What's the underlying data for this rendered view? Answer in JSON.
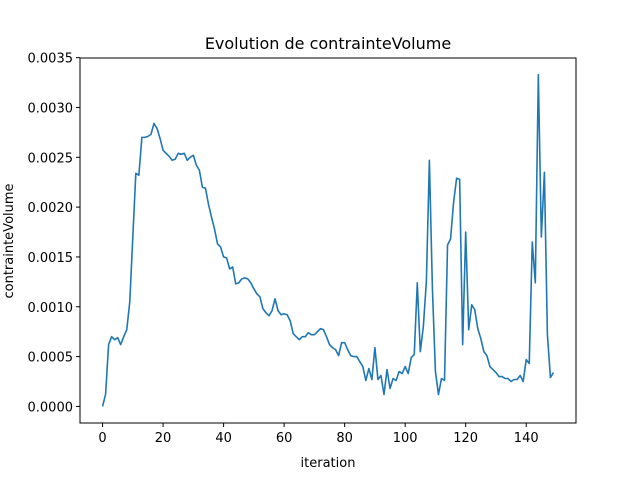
{
  "chart_data": {
    "type": "line",
    "title": "Evolution de contrainteVolume",
    "x_label": "iteration",
    "y_label": "contrainteVolume",
    "x": [
      0,
      1,
      2,
      3,
      4,
      5,
      6,
      7,
      8,
      9,
      10,
      11,
      12,
      13,
      14,
      15,
      16,
      17,
      18,
      19,
      20,
      21,
      22,
      23,
      24,
      25,
      26,
      27,
      28,
      29,
      30,
      31,
      32,
      33,
      34,
      35,
      36,
      37,
      38,
      39,
      40,
      41,
      42,
      43,
      44,
      45,
      46,
      47,
      48,
      49,
      50,
      51,
      52,
      53,
      54,
      55,
      56,
      57,
      58,
      59,
      60,
      61,
      62,
      63,
      64,
      65,
      66,
      67,
      68,
      69,
      70,
      71,
      72,
      73,
      74,
      75,
      76,
      77,
      78,
      79,
      80,
      81,
      82,
      83,
      84,
      85,
      86,
      87,
      88,
      89,
      90,
      91,
      92,
      93,
      94,
      95,
      96,
      97,
      98,
      99,
      100,
      101,
      102,
      103,
      104,
      105,
      106,
      107,
      108,
      109,
      110,
      111,
      112,
      113,
      114,
      115,
      116,
      117,
      118,
      119,
      120,
      121,
      122,
      123,
      124,
      125,
      126,
      127,
      128,
      129,
      130,
      131,
      132,
      133,
      134,
      135,
      136,
      137,
      138,
      139,
      140,
      141,
      142,
      143,
      144,
      145,
      146,
      147,
      148,
      149
    ],
    "series": [
      {
        "color": "#1f77b4",
        "values": [
          0.0,
          0.00012,
          0.00062,
          0.0007,
          0.00067,
          0.00069,
          0.00062,
          0.0007,
          0.00077,
          0.00105,
          0.0017,
          0.00234,
          0.00232,
          0.0027,
          0.0027,
          0.00271,
          0.00273,
          0.00284,
          0.00279,
          0.00269,
          0.00257,
          0.00254,
          0.00251,
          0.00247,
          0.00248,
          0.00254,
          0.00253,
          0.00254,
          0.00247,
          0.0025,
          0.00252,
          0.00242,
          0.00237,
          0.0022,
          0.00219,
          0.00203,
          0.0019,
          0.00178,
          0.00163,
          0.0016,
          0.0015,
          0.00149,
          0.00138,
          0.0014,
          0.00123,
          0.00124,
          0.00128,
          0.00129,
          0.00128,
          0.00124,
          0.00118,
          0.00113,
          0.0011,
          0.00098,
          0.00094,
          0.00091,
          0.00096,
          0.00108,
          0.00096,
          0.00092,
          0.00093,
          0.00092,
          0.00086,
          0.00073,
          0.0007,
          0.00067,
          0.0007,
          0.0007,
          0.00074,
          0.00072,
          0.00072,
          0.00075,
          0.00078,
          0.00077,
          0.0007,
          0.00062,
          0.00059,
          0.00057,
          0.00051,
          0.00064,
          0.00064,
          0.00057,
          0.00051,
          0.0005,
          0.0005,
          0.00045,
          0.0004,
          0.00026,
          0.00038,
          0.00027,
          0.00059,
          0.00027,
          0.00031,
          0.00012,
          0.00037,
          0.00018,
          0.00028,
          0.00026,
          0.00035,
          0.00033,
          0.0004,
          0.00033,
          0.00049,
          0.00052,
          0.00124,
          0.00055,
          0.0008,
          0.00125,
          0.00247,
          0.00118,
          0.00035,
          0.00012,
          0.00028,
          0.00026,
          0.00162,
          0.00168,
          0.00205,
          0.00229,
          0.00228,
          0.00062,
          0.00175,
          0.00077,
          0.00102,
          0.00097,
          0.00078,
          0.00068,
          0.00055,
          0.00051,
          0.0004,
          0.00037,
          0.00034,
          0.0003,
          0.0003,
          0.00028,
          0.00028,
          0.00025,
          0.00027,
          0.00027,
          0.00031,
          0.00025,
          0.00047,
          0.00043,
          0.00165,
          0.00124,
          0.00333,
          0.0017,
          0.00235,
          0.00072,
          0.00029,
          0.00034
        ]
      }
    ],
    "xlim": [
      -7.45,
      156.45
    ],
    "xticks": [
      0,
      20,
      40,
      60,
      80,
      100,
      120,
      140
    ],
    "ylim": [
      -0.0001665,
      0.0034965
    ],
    "yticks": [
      {
        "value": 0,
        "label": "0.0000"
      },
      {
        "value": 0.0005,
        "label": "0.0005"
      },
      {
        "value": 0.001,
        "label": "0.0010"
      },
      {
        "value": 0.0015,
        "label": "0.0015"
      },
      {
        "value": 0.002,
        "label": "0.0020"
      },
      {
        "value": 0.0025,
        "label": "0.0025"
      },
      {
        "value": 0.003,
        "label": "0.0030"
      },
      {
        "value": 0.0035,
        "label": "0.0035"
      }
    ],
    "grid": false
  }
}
